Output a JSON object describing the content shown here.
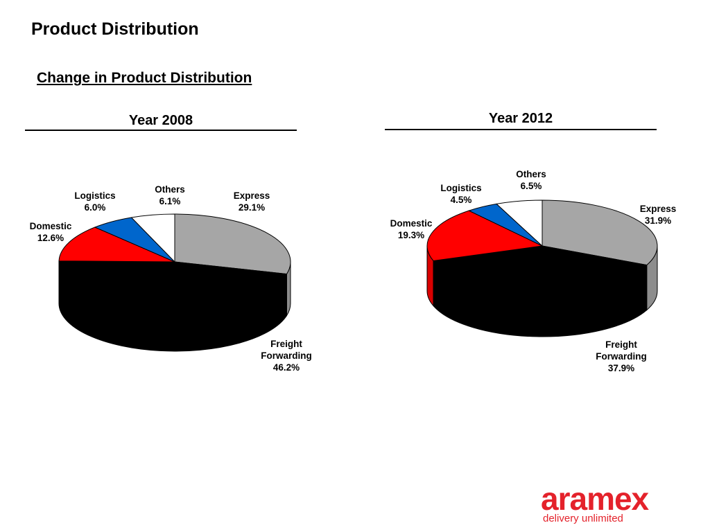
{
  "page": {
    "title": "Product Distribution",
    "subtitle": "Change in Product Distribution"
  },
  "colors": {
    "express": "#a6a6a6",
    "freight": "#000000",
    "domestic": "#ff0000",
    "logistics": "#0066cc",
    "others": "#ffffff",
    "brand": "#e4222b"
  },
  "chart_data": [
    {
      "type": "pie",
      "title": "Year 2008",
      "slices": [
        {
          "name": "Express",
          "value": 29.1,
          "label": "29.1%"
        },
        {
          "name": "Freight Forwarding",
          "value": 46.2,
          "label": "46.2%"
        },
        {
          "name": "Domestic",
          "value": 12.6,
          "label": "12.6%"
        },
        {
          "name": "Logistics",
          "value": 6.0,
          "label": "6.0%"
        },
        {
          "name": "Others",
          "value": 6.1,
          "label": "6.1%"
        }
      ]
    },
    {
      "type": "pie",
      "title": "Year 2012",
      "slices": [
        {
          "name": "Express",
          "value": 31.9,
          "label": "31.9%"
        },
        {
          "name": "Freight Forwarding",
          "value": 37.9,
          "label": "37.9%"
        },
        {
          "name": "Domestic",
          "value": 19.3,
          "label": "19.3%"
        },
        {
          "name": "Logistics",
          "value": 4.5,
          "label": "4.5%"
        },
        {
          "name": "Others",
          "value": 6.5,
          "label": "6.5%"
        }
      ]
    }
  ],
  "logo": {
    "wordmark": "aramex",
    "tagline": "delivery unlimited"
  }
}
